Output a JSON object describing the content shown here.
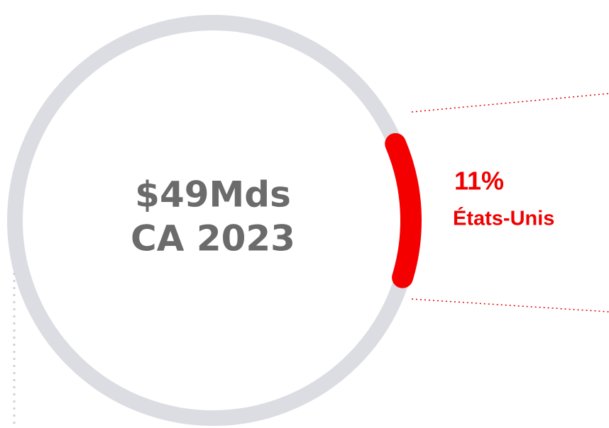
{
  "chart_data": {
    "type": "donut",
    "center_text": [
      "$49Mds",
      "CA 2023"
    ],
    "categories": [
      "États-Unis"
    ],
    "values": [
      11
    ],
    "value_labels": [
      "11%"
    ],
    "color": "#f50000",
    "ring_color": "#dcdde3"
  }
}
